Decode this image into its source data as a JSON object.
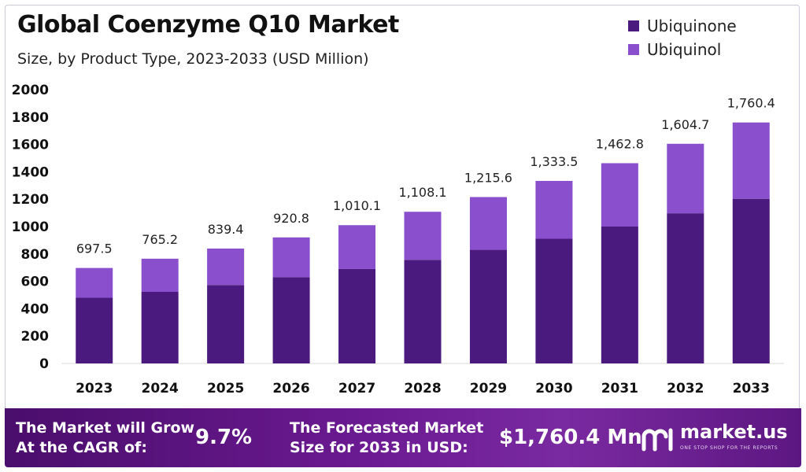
{
  "header": {
    "title": "Global Coenzyme Q10 Market",
    "subtitle": "Size, by Product Type, 2023-2033 (USD Million)"
  },
  "colors": {
    "ubiquinone": "#4b1a7f",
    "ubiquinol": "#8a4fcc",
    "footer_bg": "#5d1782"
  },
  "chart_data": {
    "type": "bar",
    "stacked": true,
    "categories": [
      "2023",
      "2024",
      "2025",
      "2026",
      "2027",
      "2028",
      "2029",
      "2030",
      "2031",
      "2032",
      "2033"
    ],
    "series": [
      {
        "name": "Ubiquinone",
        "values": [
          480,
          523,
          573,
          630,
          690,
          757,
          830,
          911,
          1000,
          1097,
          1203
        ]
      },
      {
        "name": "Ubiquinol",
        "values": [
          217.5,
          242.2,
          266.4,
          290.8,
          320.1,
          351.1,
          385.6,
          422.5,
          462.8,
          507.7,
          557.4
        ]
      }
    ],
    "totals": [
      697.5,
      765.2,
      839.4,
      920.8,
      1010.1,
      1108.1,
      1215.6,
      1333.5,
      1462.8,
      1604.7,
      1760.4
    ],
    "total_labels": [
      "697.5",
      "765.2",
      "839.4",
      "920.8",
      "1,010.1",
      "1,108.1",
      "1,215.6",
      "1,333.5",
      "1,462.8",
      "1,604.7",
      "1,760.4"
    ],
    "yticks": [
      0,
      200,
      400,
      600,
      800,
      1000,
      1200,
      1400,
      1600,
      1800,
      2000
    ],
    "ylim": [
      0,
      2000
    ],
    "grid": false,
    "legend": "top-right"
  },
  "footer": {
    "cagr_label_line1": "The Market will Grow",
    "cagr_label_line2": "At the CAGR of:",
    "cagr_value": "9.7%",
    "forecast_label_line1": "The Forecasted Market",
    "forecast_label_line2": "Size for 2033 in USD:",
    "forecast_value": "$1,760.4 Mn",
    "brand_name": "market.us",
    "brand_tagline": "ONE STOP SHOP FOR THE REPORTS",
    "brand_icon": "market-us-logo-icon"
  }
}
